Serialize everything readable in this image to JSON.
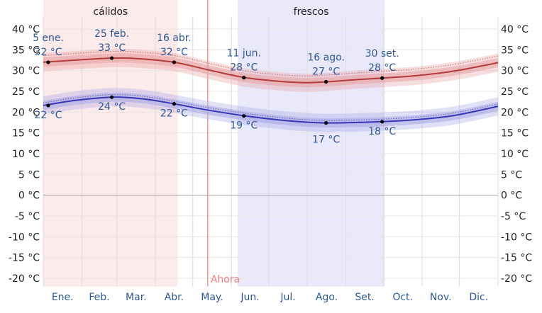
{
  "chart_data": {
    "type": "line",
    "title": "",
    "xlabel": "",
    "ylabel": "",
    "ylim": [
      -22,
      42
    ],
    "xlim_days": [
      0,
      365
    ],
    "y_ticks": [
      40,
      35,
      30,
      25,
      20,
      15,
      10,
      5,
      0,
      -5,
      -10,
      -15,
      -20
    ],
    "y_tick_suffix": " °C",
    "grid": true,
    "months": [
      "Ene.",
      "Feb.",
      "Mar.",
      "Abr.",
      "May.",
      "Jun.",
      "Jul.",
      "Ago.",
      "Set.",
      "Oct.",
      "Nov.",
      "Dic."
    ],
    "seasons": [
      {
        "name": "cálidos",
        "start": "1 ene.",
        "end": "18 abr.",
        "start_day": 0,
        "end_day": 108,
        "color": "#fdeaea"
      },
      {
        "name": "frescos",
        "start": "5 jun.",
        "end": "1 oct.",
        "start_day": 156,
        "end_day": 274,
        "color": "#e9e9fb"
      }
    ],
    "now": {
      "label": "Ahora",
      "day": 132,
      "color": "#f08080"
    },
    "series": [
      {
        "key": "max",
        "color": "#b33a3a",
        "band_color": "#e8a0a0",
        "x_days": [
          0,
          30,
          55,
          75,
          105,
          135,
          162,
          190,
          210,
          227,
          250,
          272,
          300,
          330,
          365
        ],
        "values": [
          32,
          32.6,
          33,
          32.9,
          32,
          30,
          28.3,
          27.4,
          27.1,
          27.3,
          27.8,
          28.2,
          28.8,
          29.9,
          31.9
        ]
      },
      {
        "key": "min",
        "color": "#3535b5",
        "band_color": "#a5a5e6",
        "x_days": [
          0,
          25,
          55,
          80,
          105,
          130,
          162,
          190,
          210,
          227,
          250,
          272,
          300,
          330,
          365
        ],
        "values": [
          21.6,
          22.8,
          23.6,
          23.2,
          22,
          20.6,
          19.1,
          18.1,
          17.6,
          17.4,
          17.5,
          17.7,
          18.2,
          19.2,
          21.4
        ]
      }
    ],
    "annotations": [
      {
        "series": "max",
        "date": "5 ene.",
        "value": "32 °C",
        "day": 4,
        "y": 32
      },
      {
        "series": "max",
        "date": "25 feb.",
        "value": "33 °C",
        "day": 55,
        "y": 33
      },
      {
        "series": "max",
        "date": "16 abr.",
        "value": "32 °C",
        "day": 105,
        "y": 32
      },
      {
        "series": "max",
        "date": "11 jun.",
        "value": "28 °C",
        "day": 161,
        "y": 28.3
      },
      {
        "series": "max",
        "date": "16 ago.",
        "value": "27 °C",
        "day": 227,
        "y": 27.3
      },
      {
        "series": "max",
        "date": "30 set.",
        "value": "28 °C",
        "day": 272,
        "y": 28.2
      },
      {
        "series": "min",
        "value": "22 °C",
        "day": 4,
        "y": 21.6
      },
      {
        "series": "min",
        "value": "24 °C",
        "day": 55,
        "y": 23.6
      },
      {
        "series": "min",
        "value": "22 °C",
        "day": 105,
        "y": 22
      },
      {
        "series": "min",
        "value": "19 °C",
        "day": 161,
        "y": 19.1
      },
      {
        "series": "min",
        "value": "17 °C",
        "day": 227,
        "y": 17.4
      },
      {
        "series": "min",
        "value": "18 °C",
        "day": 272,
        "y": 17.7
      }
    ]
  }
}
